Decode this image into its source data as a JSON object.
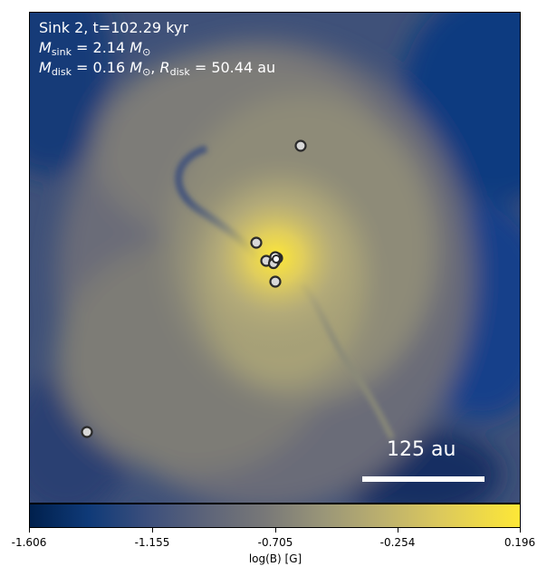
{
  "panel": {
    "line1": "Sink 2, t=102.29 kyr",
    "msink_symbol": "M",
    "msink_sub": "sink",
    "msink_value": "= 2.14",
    "msink_unit": "M",
    "msink_unit_sub": "⊙",
    "mdisk_symbol": "M",
    "mdisk_sub": "disk",
    "mdisk_value": "= 0.16",
    "mdisk_unit": "M",
    "mdisk_unit_sub": "⊙",
    "rdisk_symbol": "R",
    "rdisk_sub": "disk",
    "rdisk_value": "= 50.44 au"
  },
  "scale_bar": {
    "label": "125 au"
  },
  "colorbar": {
    "ticks": [
      "-1.606",
      "-1.155",
      "-0.705",
      "-0.254",
      "0.196"
    ],
    "label": "log(B) [G]",
    "colors": [
      "#00204d",
      "#0f3a78",
      "#787878",
      "#dcc95c",
      "#fde737"
    ]
  },
  "sinks": {
    "count": 10
  }
}
